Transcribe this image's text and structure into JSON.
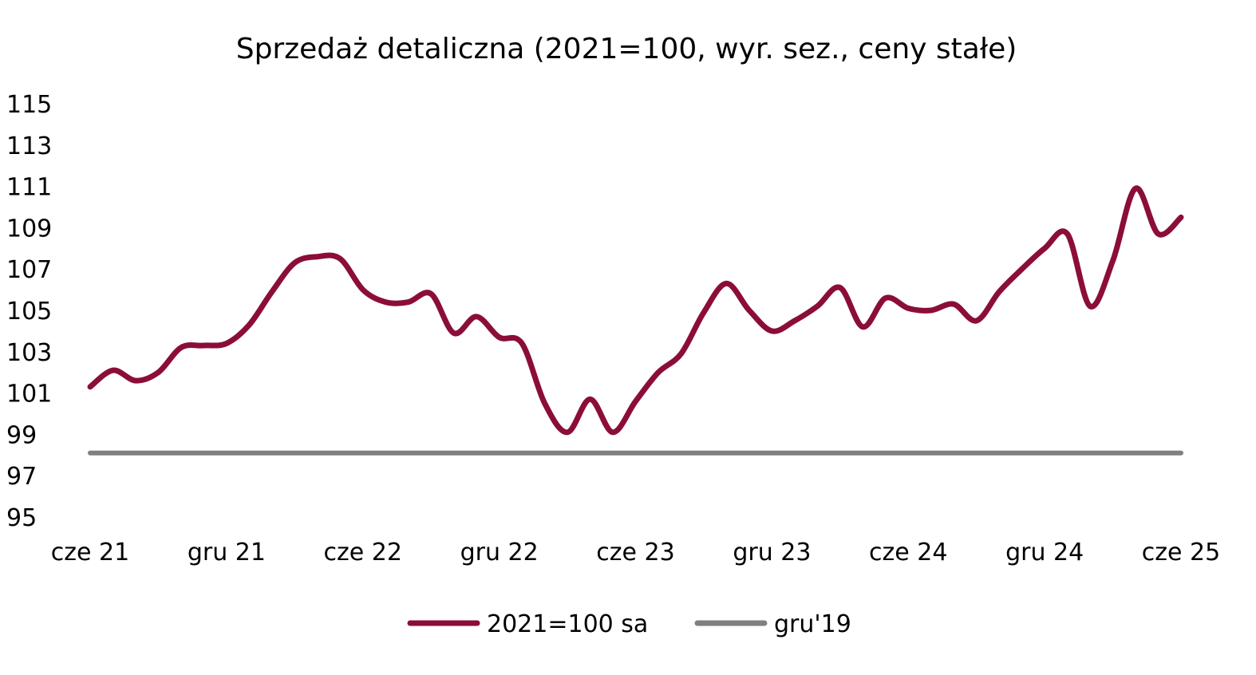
{
  "chart_data": {
    "type": "line",
    "title": "Sprzedaż detaliczna (2021=100, wyr. sez., ceny stałe)",
    "xlabel": "",
    "ylabel": "",
    "ylim": [
      95,
      115
    ],
    "yticks": [
      95,
      97,
      99,
      101,
      103,
      105,
      107,
      109,
      111,
      113,
      115
    ],
    "xtick_labels": [
      "cze 21",
      "gru 21",
      "cze 22",
      "gru 22",
      "cze 23",
      "gru 23",
      "cze 24",
      "gru 24",
      "cze 25"
    ],
    "x": [
      "2021-06",
      "2021-07",
      "2021-08",
      "2021-09",
      "2021-10",
      "2021-11",
      "2021-12",
      "2022-01",
      "2022-02",
      "2022-03",
      "2022-04",
      "2022-05",
      "2022-06",
      "2022-07",
      "2022-08",
      "2022-09",
      "2022-10",
      "2022-11",
      "2022-12",
      "2023-01",
      "2023-02",
      "2023-03",
      "2023-04",
      "2023-05",
      "2023-06",
      "2023-07",
      "2023-08",
      "2023-09",
      "2023-10",
      "2023-11",
      "2023-12",
      "2024-01",
      "2024-02",
      "2024-03",
      "2024-04",
      "2024-05",
      "2024-06",
      "2024-07",
      "2024-08",
      "2024-09",
      "2024-10",
      "2024-11",
      "2024-12",
      "2025-01",
      "2025-02",
      "2025-03",
      "2025-04",
      "2025-05",
      "2025-06"
    ],
    "series": [
      {
        "name": "2021=100 sa",
        "color": "#8b0d3a",
        "values": [
          101.3,
          102.1,
          101.6,
          102.0,
          103.2,
          103.3,
          103.4,
          104.3,
          105.9,
          107.3,
          107.6,
          107.5,
          106.0,
          105.4,
          105.4,
          105.8,
          103.9,
          104.7,
          103.7,
          103.4,
          100.5,
          99.1,
          100.7,
          99.1,
          100.6,
          102.0,
          102.9,
          104.9,
          106.3,
          105.0,
          104.0,
          104.5,
          105.2,
          106.1,
          104.2,
          105.6,
          105.1,
          105.0,
          105.3,
          104.5,
          105.9,
          107.0,
          108.0,
          108.7,
          105.2,
          107.4,
          110.9,
          108.7,
          109.5
        ]
      },
      {
        "name": "gru'19",
        "color": "#808080",
        "values": [
          98.1,
          98.1,
          98.1,
          98.1,
          98.1,
          98.1,
          98.1,
          98.1,
          98.1,
          98.1,
          98.1,
          98.1,
          98.1,
          98.1,
          98.1,
          98.1,
          98.1,
          98.1,
          98.1,
          98.1,
          98.1,
          98.1,
          98.1,
          98.1,
          98.1,
          98.1,
          98.1,
          98.1,
          98.1,
          98.1,
          98.1,
          98.1,
          98.1,
          98.1,
          98.1,
          98.1,
          98.1,
          98.1,
          98.1,
          98.1,
          98.1,
          98.1,
          98.1,
          98.1,
          98.1,
          98.1,
          98.1,
          98.1,
          98.1
        ]
      }
    ],
    "grid": false,
    "legend": "bottom-center"
  }
}
